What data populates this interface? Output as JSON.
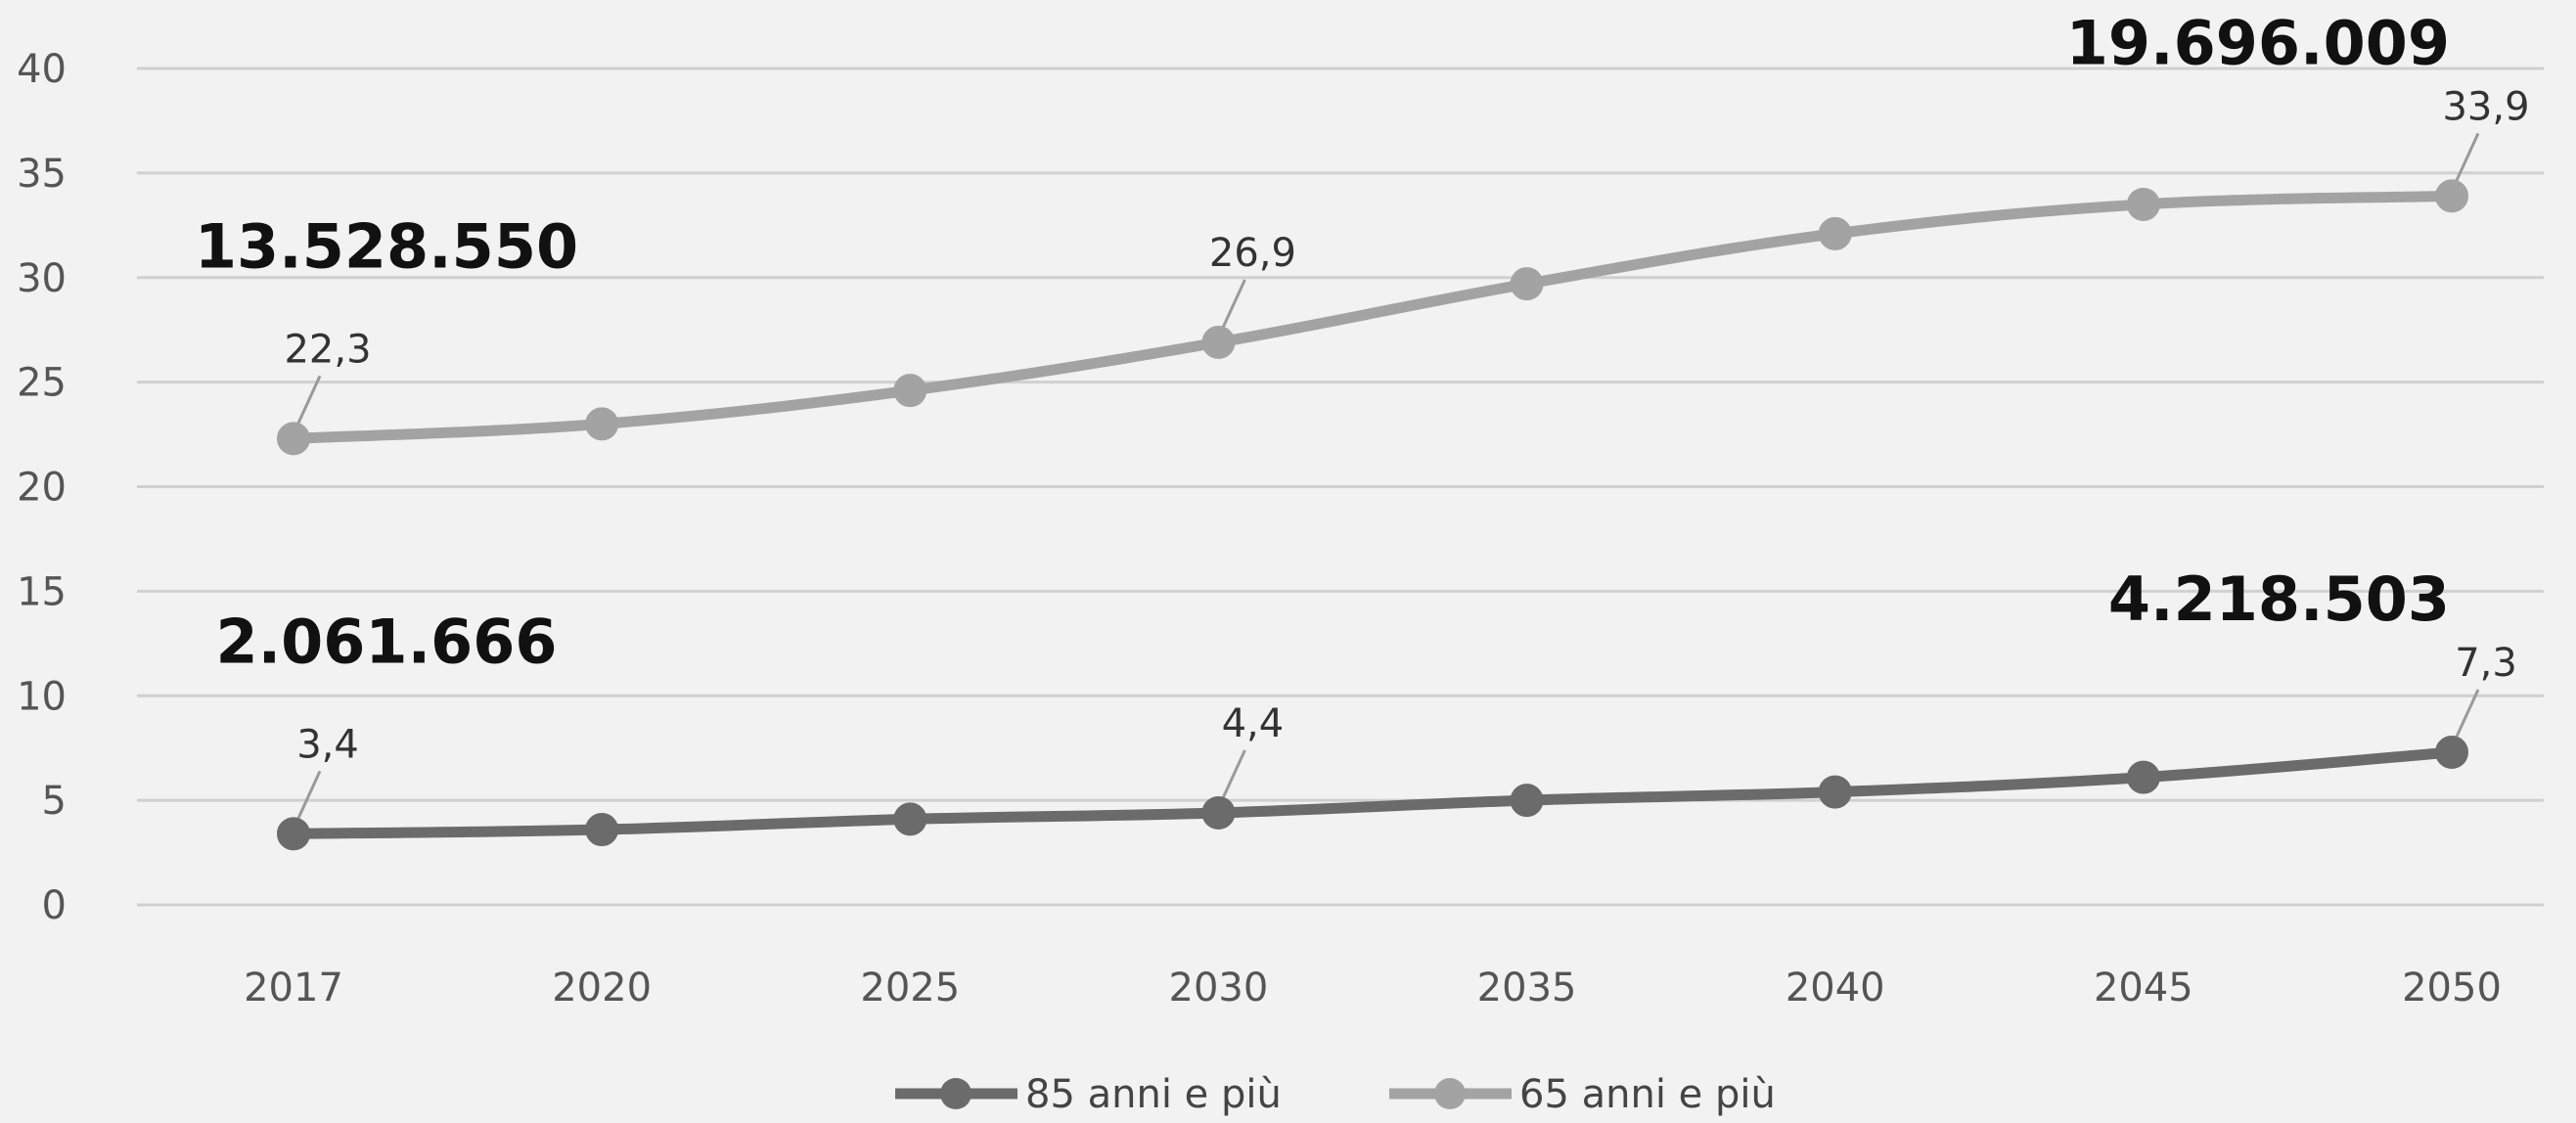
{
  "chart_data": {
    "type": "line",
    "categories": [
      "2017",
      "2020",
      "2025",
      "2030",
      "2035",
      "2040",
      "2045",
      "2050"
    ],
    "series": [
      {
        "name": "85 anni e più",
        "values": [
          3.4,
          3.6,
          4.1,
          4.4,
          5.0,
          5.4,
          6.1,
          7.3
        ],
        "color": "#6b6b6b"
      },
      {
        "name": "65 anni e più",
        "values": [
          22.3,
          23.0,
          24.6,
          26.9,
          29.7,
          32.1,
          33.5,
          33.9
        ],
        "color": "#a3a3a3"
      }
    ],
    "ylim": [
      0,
      40
    ],
    "yticks": [
      "0",
      "5",
      "10",
      "15",
      "20",
      "25",
      "30",
      "35",
      "40"
    ],
    "grid": true,
    "legend": "bottom",
    "data_labels": [
      {
        "series": 1,
        "index": 0,
        "text": "22,3"
      },
      {
        "series": 1,
        "index": 3,
        "text": "26,9"
      },
      {
        "series": 1,
        "index": 7,
        "text": "33,9"
      },
      {
        "series": 0,
        "index": 0,
        "text": "3,4"
      },
      {
        "series": 0,
        "index": 3,
        "text": "4,4"
      },
      {
        "series": 0,
        "index": 7,
        "text": "7,3"
      }
    ],
    "annotations": [
      {
        "text": "13.528.550",
        "series": 1,
        "index": 0
      },
      {
        "text": "19.696.009",
        "series": 1,
        "index": 7
      },
      {
        "text": "2.061.666",
        "series": 0,
        "index": 0
      },
      {
        "text": "4.218.503",
        "series": 0,
        "index": 7
      }
    ]
  }
}
